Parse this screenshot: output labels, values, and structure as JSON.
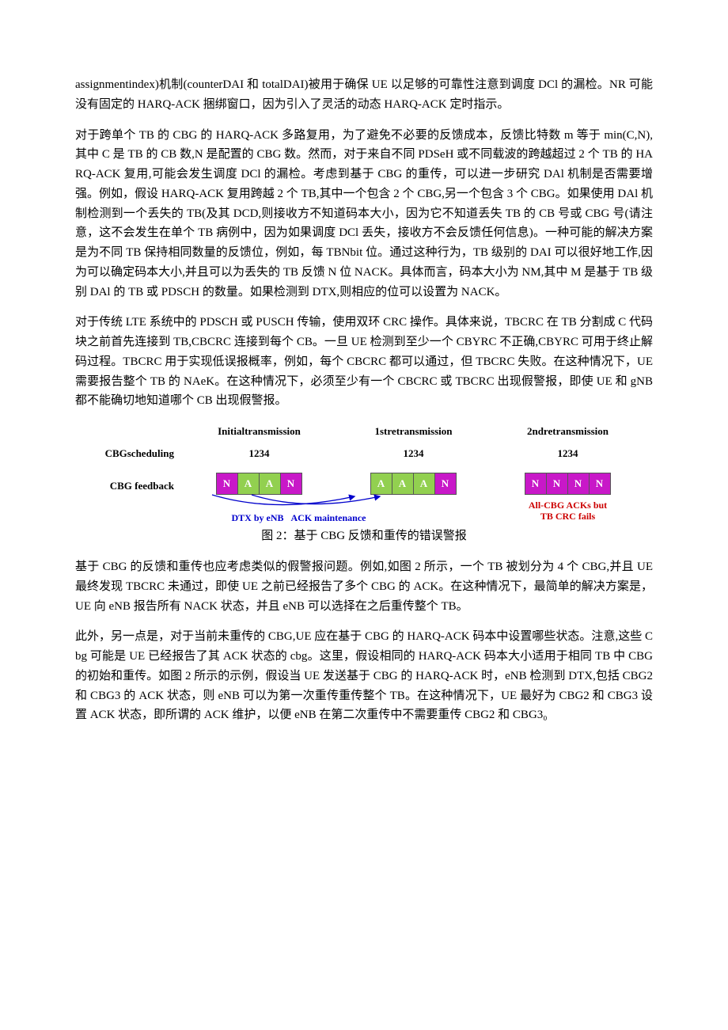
{
  "paragraphs": {
    "p1": "assignmentindex)机制(counterDAI 和 totalDAI)被用于确保 UE 以足够的可靠性注意到调度 DCl 的漏检。NR 可能没有固定的 HARQ-ACK 捆绑窗口，因为引入了灵活的动态 HARQ-ACK 定时指示。",
    "p2": "对于跨单个 TB 的 CBG 的 HARQ-ACK 多路复用，为了避免不必要的反馈成本，反馈比特数 m 等于 min(C,N),其中 C 是 TB 的 CB 数,N 是配置的 CBG 数。然而，对于来自不同 PDSeH 或不同载波的跨越超过 2 个 TB 的 HARQ-ACK 复用,可能会发生调度 DCl 的漏检。考虑到基于 CBG 的重传，可以进一步研究 DAl 机制是否需要增强。例如，假设 HARQ-ACK 复用跨越 2 个 TB,其中一个包含 2 个 CBG,另一个包含 3 个 CBG。如果使用 DAl 机制检测到一个丢失的 TB(及其 DCD,则接收方不知道码本大小，因为它不知道丢失 TB 的 CB 号或 CBG 号(请注意，这不会发生在单个 TB 病例中，因为如果调度 DCl 丢失，接收方不会反馈任何信息)。一种可能的解决方案是为不同 TB 保持相同数量的反馈位，例如，每 TBNbit 位。通过这种行为，TB 级别的 DAI 可以很好地工作,因为可以确定码本大小,并且可以为丢失的 TB 反馈 N 位 NACK。具体而言，码本大小为 NM,其中 M 是基于 TB 级别 DAl 的 TB 或 PDSCH 的数量。如果检测到 DTX,则相应的位可以设置为 NACK。",
    "p3": "对于传统 LTE 系统中的 PDSCH 或 PUSCH 传输，使用双环 CRC 操作。具体来说，TBCRC 在 TB 分割成 C 代码块之前首先连接到 TB,CBCRC 连接到每个 CB。一旦 UE 检测到至少一个 CBYRC 不正确,CBYRC 可用于终止解码过程。TBCRC 用于实现低误报概率，例如，每个 CBCRC 都可以通过，但 TBCRC 失败。在这种情况下，UE 需要报告整个 TB 的 NAeK。在这种情况下，必须至少有一个 CBCRC 或 TBCRC 出现假警报，即使 UE 和 gNB 都不能确切地知道哪个 CB 出现假警报。",
    "p4": "基于 CBG 的反馈和重传也应考虑类似的假警报问题。例如,如图 2 所示，一个 TB 被划分为 4 个 CBG,并且 UE 最终发现 TBCRC 未通过，即使 UE 之前已经报告了多个 CBG 的 ACK。在这种情况下，最简单的解决方案是，UE 向 eNB 报告所有 NACK 状态，并且 eNB 可以选择在之后重传整个 TB。",
    "p5": "此外，另一点是，对于当前未重传的 CBG,UE 应在基于 CBG 的 HARQ-ACK 码本中设置哪些状态。注意,这些 Cbg 可能是 UE 已经报告了其 ACK 状态的 cbg。这里，假设相同的 HARQ-ACK 码本大小适用于相同 TB 中 CBG 的初始和重传。如图 2 所示的示例，假设当 UE 发送基于 CBG 的 HARQ-ACK 时，eNB 检测到 DTX,包括 CBG2 和 CBG3 的 ACK 状态，则 eNB 可以为第一次重传重传整个 TB。在这种情况下，UE 最好为 CBG2 和 CBG3 设置 ACK 状态，即所谓的 ACK 维护，以便 eNB 在第二次重传中不需要重传 CBG2 和 CBG3₀"
  },
  "diagram": {
    "headers": {
      "row_label": "",
      "col1": "Initialtransmission",
      "col2": "1stretransmission",
      "col3": "2ndretransmission"
    },
    "sched_row": {
      "label": "CBGscheduling",
      "v": "1234"
    },
    "fb_row_label": "CBG feedback",
    "colors": {
      "nack": "#c818c8",
      "ack": "#92d050",
      "note_blue": "#0000cc",
      "note_red": "#cc0000"
    },
    "groups": [
      {
        "cells": [
          {
            "t": "N",
            "c": "nack"
          },
          {
            "t": "A",
            "c": "ack"
          },
          {
            "t": "A",
            "c": "ack"
          },
          {
            "t": "N",
            "c": "nack"
          }
        ]
      },
      {
        "cells": [
          {
            "t": "A",
            "c": "ack"
          },
          {
            "t": "A",
            "c": "ack"
          },
          {
            "t": "A",
            "c": "ack"
          },
          {
            "t": "N",
            "c": "nack"
          }
        ]
      },
      {
        "cells": [
          {
            "t": "N",
            "c": "nack"
          },
          {
            "t": "N",
            "c": "nack"
          },
          {
            "t": "N",
            "c": "nack"
          },
          {
            "t": "N",
            "c": "nack"
          }
        ]
      }
    ],
    "note_left_a": "DTX by eNB",
    "note_left_b": "ACK maintenance",
    "note_right_a": "All-CBG ACKs but",
    "note_right_b": "TB CRC fails",
    "caption": "图 2：基于 CBG 反馈和重传的错误警报"
  }
}
